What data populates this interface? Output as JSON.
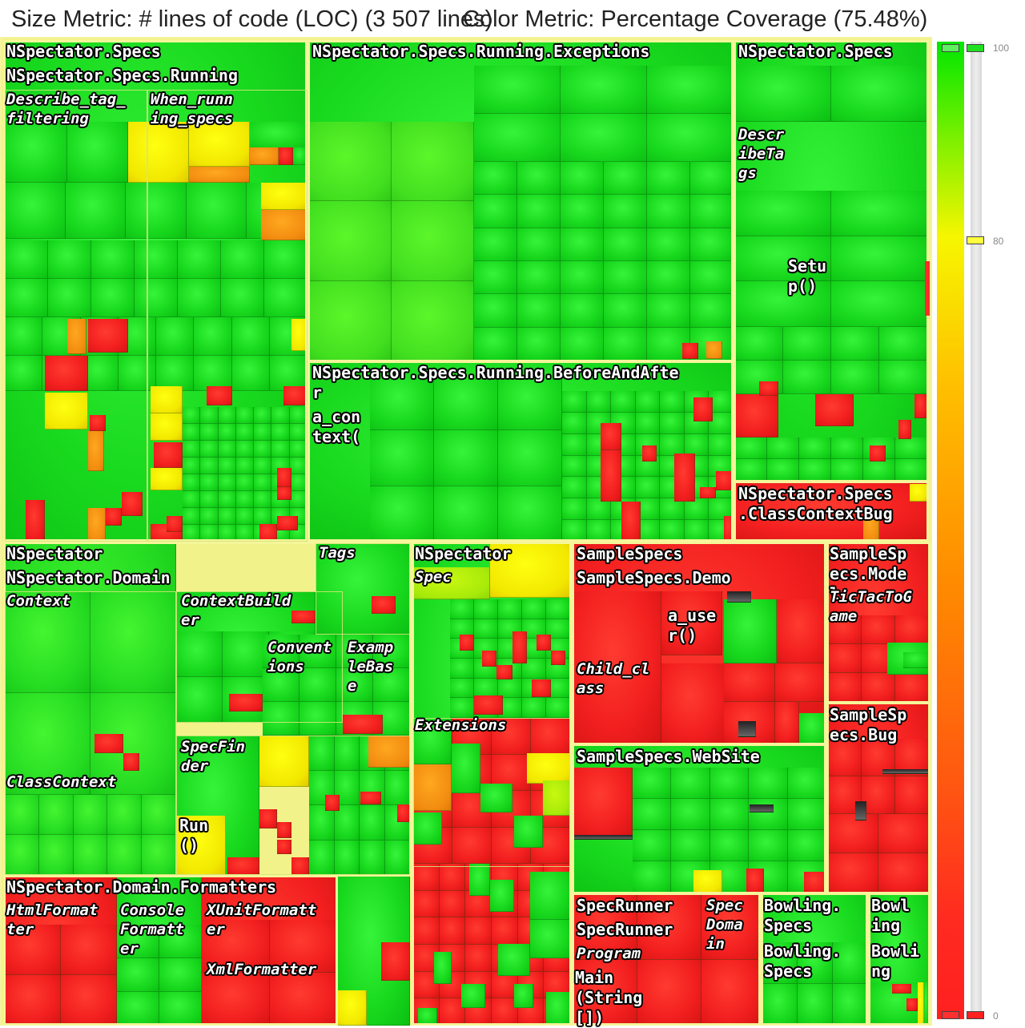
{
  "header": {
    "size_metric": "Size Metric: # lines of code (LOC) (3 507 lines)",
    "color_metric": "Color Metric: Percentage Coverage (75.48%)"
  },
  "labels": {
    "specs": "NSpectator.Specs",
    "specs_running": "NSpectator.Specs.Running",
    "describe_tag_filtering": "Describe_tag_\nfiltering",
    "when_running_specs": "When_runn\ning_specs",
    "running_exceptions": "NSpectator.Specs.Running.Exceptions",
    "specs_right": "NSpectator.Specs",
    "describe_tags": "Descr\nibeTa\ngs",
    "setup": "Setu\np()",
    "before_and_after": "NSpectator.Specs.Running.BeforeAndAfte\nr",
    "a_context": "a_con\ntext(",
    "class_context_bug": "NSpectator.Specs\n.ClassContextBug",
    "nspectator": "NSpectator",
    "tags": "Tags",
    "domain": "NSpectator.Domain",
    "context": "Context",
    "context_builder": "ContextBuild\ner",
    "conventions": "Convent\nions",
    "example_base": "Examp\nleBas\ne",
    "spec_finder": "SpecFin\nder",
    "class_context": "ClassContext",
    "run": "Run\n()",
    "nspectator_2": "NSpectator",
    "spec": "Spec",
    "extensions": "Extensions",
    "formatters": "NSpectator.Domain.Formatters",
    "html_formatter": "HtmlFormat\nter",
    "console_formatter": "Console\nFormatt\ner",
    "xunit_formatter": "XUnitFormatt\ner",
    "xml_formatter": "XmlFormatter",
    "sample_specs": "SampleSpecs",
    "sample_specs_demo": "SampleSpecs.Demo",
    "a_user": "a_use\nr()",
    "child_class": "Child_cl\nass",
    "sample_specs_model": "SampleSp\necs.Mode\nl",
    "tic_tac_toe": "TicTacToG\name",
    "sample_specs_bug": "SampleSp\necs.Bug",
    "sample_specs_website": "SampleSpecs.WebSite",
    "spec_runner": "SpecRunner",
    "spec_runner_2": "SpecRunner",
    "program": "Program",
    "main_string": "Main\n(String\n[])",
    "spec_domain": "Spec\nDoma\nin",
    "bowling_specs": "Bowling.\nSpecs",
    "bowling_specs_2": "Bowling.\nSpecs",
    "bowling": "Bowl\ning",
    "bowling_2": "Bowli\nng"
  },
  "legend": {
    "max_label": "100",
    "mid_label": "80",
    "min_label": "0",
    "gradient_colors": [
      "#00e600",
      "#f6f600",
      "#ff8c00",
      "#ff2020"
    ],
    "upper_threshold": 100,
    "mid_threshold": 80,
    "lower_threshold": 0
  },
  "colors": {
    "full_coverage": "#18d81e",
    "no_coverage": "#f21f1f",
    "partial_coverage": "#f2e800",
    "border": "#f5f59a"
  }
}
